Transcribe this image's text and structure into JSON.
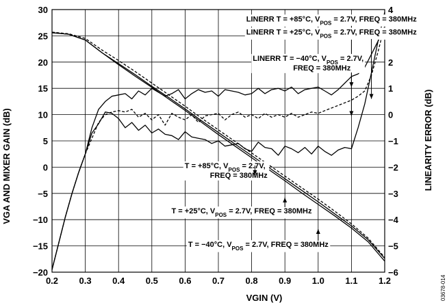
{
  "chart_data": {
    "type": "line",
    "xlabel": "VGIN (V)",
    "ylabel": "VGA AND MIXER GAIN (dB)",
    "y2label": "LINEARITY ERROR (dB)",
    "xlim": [
      0.2,
      1.2
    ],
    "ylim": [
      -20,
      30
    ],
    "y2lim": [
      -6,
      4
    ],
    "xticks": [
      "0.2",
      "0.3",
      "0.4",
      "0.5",
      "0.6",
      "0.7",
      "0.8",
      "0.9",
      "1.0",
      "1.1",
      "1.2"
    ],
    "yticks": [
      "30",
      "25",
      "20",
      "15",
      "10",
      "5",
      "0",
      "−5",
      "−10",
      "−15",
      "−20"
    ],
    "y2ticks": [
      "4",
      "3",
      "2",
      "1",
      "0",
      "−1",
      "−2",
      "−3",
      "−4",
      "−5",
      "−6"
    ],
    "grid": true,
    "figure_id": "03678-014",
    "series": [
      {
        "key": "gain_p85",
        "axis": "left",
        "style": "solid",
        "x": [
          0.2,
          0.25,
          0.3,
          0.35,
          0.4,
          0.45,
          0.5,
          0.55,
          0.6,
          0.65,
          0.7,
          0.75,
          0.8,
          0.85,
          0.9,
          0.95,
          1.0,
          1.05,
          1.1,
          1.15,
          1.2
        ],
        "y": [
          25.6,
          25.3,
          24.2,
          21.8,
          19.5,
          17.3,
          15.2,
          13.0,
          10.8,
          8.5,
          6.2,
          4.0,
          1.8,
          -0.4,
          -2.6,
          -4.9,
          -7.1,
          -9.3,
          -11.6,
          -14.2,
          -17.9
        ]
      },
      {
        "key": "gain_p25",
        "axis": "left",
        "style": "solid",
        "x": [
          0.2,
          0.25,
          0.3,
          0.35,
          0.4,
          0.45,
          0.5,
          0.55,
          0.6,
          0.65,
          0.7,
          0.75,
          0.8,
          0.85,
          0.9,
          0.95,
          1.0,
          1.05,
          1.1,
          1.15,
          1.2
        ],
        "y": [
          25.6,
          25.3,
          24.2,
          21.8,
          19.7,
          17.6,
          15.4,
          13.3,
          11.1,
          8.8,
          6.6,
          4.4,
          2.2,
          0.0,
          -2.2,
          -4.4,
          -6.6,
          -8.9,
          -11.2,
          -13.8,
          -17.4
        ]
      },
      {
        "key": "gain_m40",
        "axis": "left",
        "style": "dashed",
        "x": [
          0.2,
          0.25,
          0.3,
          0.35,
          0.4,
          0.45,
          0.5,
          0.55,
          0.6,
          0.65,
          0.7,
          0.75,
          0.8,
          0.85,
          0.9,
          0.95,
          1.0,
          1.05,
          1.1,
          1.15,
          1.2
        ],
        "y": [
          25.7,
          25.4,
          24.5,
          22.3,
          20.3,
          18.2,
          16.0,
          13.8,
          11.6,
          9.3,
          7.1,
          4.9,
          2.7,
          0.5,
          -1.7,
          -3.9,
          -6.1,
          -8.4,
          -10.8,
          -13.5,
          -17.2
        ]
      },
      {
        "key": "linerr_p85",
        "axis": "right",
        "style": "solid",
        "x": [
          0.2,
          0.22,
          0.24,
          0.26,
          0.28,
          0.3,
          0.32,
          0.34,
          0.36,
          0.38,
          0.4,
          0.42,
          0.44,
          0.46,
          0.48,
          0.5,
          0.52,
          0.54,
          0.56,
          0.58,
          0.6,
          0.62,
          0.64,
          0.66,
          0.68,
          0.7,
          0.72,
          0.74,
          0.76,
          0.78,
          0.8,
          0.82,
          0.84,
          0.86,
          0.88,
          0.9,
          0.92,
          0.94,
          0.96,
          0.98,
          1.0,
          1.02,
          1.04,
          1.06,
          1.08,
          1.1,
          1.12,
          1.14,
          1.16,
          1.18,
          1.2
        ],
        "y": [
          -5.9,
          -4.9,
          -3.9,
          -3.0,
          -2.2,
          -1.5,
          -0.7,
          -0.35,
          0.1,
          0.05,
          -0.15,
          -0.5,
          -0.3,
          -0.6,
          -0.4,
          -0.7,
          -0.55,
          -0.75,
          -0.8,
          -0.95,
          -0.65,
          -0.85,
          -0.9,
          -0.95,
          -1.1,
          -1.0,
          -1.2,
          -1.15,
          -1.1,
          -1.3,
          -1.4,
          -1.05,
          -1.25,
          -1.3,
          -1.55,
          -1.2,
          -1.3,
          -1.45,
          -1.25,
          -1.5,
          -1.2,
          -1.4,
          -1.55,
          -1.35,
          -1.25,
          -1.3,
          -0.5,
          0.4,
          1.6,
          2.8,
          3.9
        ]
      },
      {
        "key": "linerr_p25",
        "axis": "right",
        "style": "dashed",
        "x": [
          0.2,
          0.22,
          0.24,
          0.26,
          0.28,
          0.3,
          0.32,
          0.34,
          0.36,
          0.38,
          0.4,
          0.42,
          0.44,
          0.46,
          0.48,
          0.5,
          0.52,
          0.54,
          0.56,
          0.58,
          0.6,
          0.62,
          0.64,
          0.66,
          0.68,
          0.7,
          0.72,
          0.74,
          0.76,
          0.78,
          0.8,
          0.82,
          0.84,
          0.86,
          0.88,
          0.9,
          0.92,
          0.94,
          0.96,
          0.98,
          1.0,
          1.02,
          1.04,
          1.06,
          1.08,
          1.1,
          1.12,
          1.14,
          1.16,
          1.18,
          1.2
        ],
        "y": [
          -5.9,
          -4.9,
          -3.9,
          -3.0,
          -2.2,
          -1.5,
          -0.9,
          -0.3,
          0.0,
          0.1,
          0.15,
          0.1,
          0.2,
          -0.1,
          0.05,
          -0.2,
          0.0,
          -0.4,
          0.05,
          -0.1,
          -0.2,
          0.0,
          -0.3,
          -0.05,
          0.0,
          0.05,
          -0.2,
          0.0,
          0.1,
          -0.1,
          0.0,
          -0.15,
          0.05,
          -0.1,
          0.0,
          -0.1,
          0.05,
          -0.1,
          0.0,
          0.1,
          0.05,
          0.15,
          0.25,
          0.35,
          0.45,
          0.55,
          0.7,
          0.9,
          1.5,
          2.4,
          3.4
        ]
      },
      {
        "key": "linerr_m40",
        "axis": "right",
        "style": "solid",
        "x": [
          0.2,
          0.22,
          0.24,
          0.26,
          0.28,
          0.3,
          0.32,
          0.34,
          0.36,
          0.38,
          0.4,
          0.42,
          0.44,
          0.46,
          0.48,
          0.5,
          0.52,
          0.54,
          0.56,
          0.58,
          0.6,
          0.62,
          0.64,
          0.66,
          0.68,
          0.7,
          0.72,
          0.74,
          0.76,
          0.78,
          0.8,
          0.82,
          0.84,
          0.86,
          0.88,
          0.9,
          0.92,
          0.94,
          0.96,
          0.98,
          1.0,
          1.02,
          1.04,
          1.06,
          1.08,
          1.1,
          1.12,
          1.14,
          1.16,
          1.18,
          1.2
        ],
        "y": [
          -5.9,
          -4.9,
          -3.9,
          -3.0,
          -2.2,
          -1.5,
          -0.5,
          0.2,
          0.5,
          0.7,
          0.75,
          0.8,
          0.6,
          0.9,
          0.75,
          1.0,
          0.85,
          0.7,
          0.8,
          0.95,
          0.6,
          0.8,
          0.95,
          0.85,
          0.9,
          0.7,
          0.95,
          0.9,
          0.85,
          0.75,
          0.8,
          1.0,
          0.8,
          0.95,
          1.0,
          0.9,
          1.05,
          0.8,
          0.95,
          1.0,
          1.05,
          0.9,
          0.75,
          0.95,
          1.2,
          1.45,
          1.55,
          1.8,
          2.3,
          2.8,
          3.3
        ]
      }
    ],
    "annotations": [
      {
        "key": "a1",
        "text": "LINERR T = +85°C, V",
        "sub": "POS",
        "rest": " = 2.7V, FREQ = 380MHz",
        "tx": 1.04,
        "ty": 3.55,
        "ax": 1.1,
        "ay": 1.05,
        "axis": "right"
      },
      {
        "key": "a2",
        "text": "LINERR T = +25°C, V",
        "sub": "POS",
        "rest": " = 2.7V, FREQ = 380MHz",
        "tx": 1.04,
        "ty": 3.05,
        "ax": 1.16,
        "ay": 0.6,
        "axis": "right"
      },
      {
        "key": "a3",
        "text": "LINERR T = −40°C, V",
        "sub": "POS",
        "rest": " = 2.7V,",
        "rest2": "FREQ = 380MHz",
        "tx": 0.97,
        "ty": 2.05,
        "ax": 1.1,
        "ay": -0.05,
        "axis": "right"
      },
      {
        "key": "a4",
        "text": "T = +85°C, V",
        "sub": "POS",
        "rest": " = 2.7V,",
        "rest2": "FREQ = 380MHz",
        "tx": 0.72,
        "ty": -0.2,
        "ax": 0.81,
        "ay": -1.5,
        "axis": "left"
      },
      {
        "key": "a5",
        "text": "T = +25°C, V",
        "sub": "POS",
        "rest": " = 2.7V, FREQ = 380MHz",
        "tx": 0.77,
        "ty": -8.8,
        "ax": 0.9,
        "ay": -5.8,
        "axis": "left"
      },
      {
        "key": "a6",
        "text": "T = −40°C, V",
        "sub": "POS",
        "rest": " = 2.7V, FREQ = 380MHz",
        "tx": 0.82,
        "ty": -15.2,
        "ax": 1.0,
        "ay": -11.8,
        "axis": "left"
      }
    ]
  }
}
